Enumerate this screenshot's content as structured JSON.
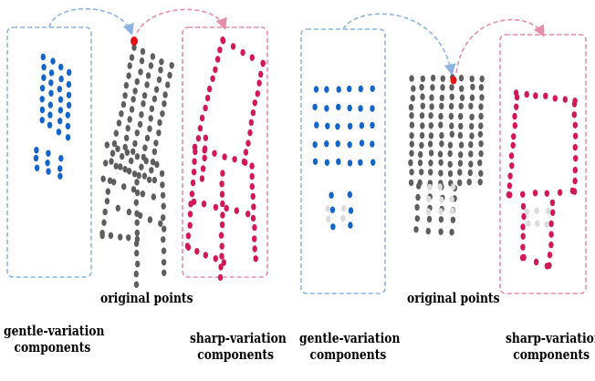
{
  "colors": {
    "gentle": "#1565c8",
    "sharp": "#d21856",
    "original": "#5e5e5e",
    "ghost": "#dcdcdc",
    "highlight": "#e51414",
    "gentle_box": "#8fb3e0",
    "sharp_box": "#e58ea8"
  },
  "labels": {
    "left_gentle_line1": "gentle-variation",
    "left_gentle_line2": "components",
    "left_original": "original points",
    "left_sharp_line1": "sharp-variation",
    "left_sharp_line2": "components",
    "right_gentle_line1": "gentle-variation",
    "right_gentle_line2": "components",
    "right_original": "original points",
    "right_sharp_line1": "sharp-variation",
    "right_sharp_line2": "components"
  }
}
